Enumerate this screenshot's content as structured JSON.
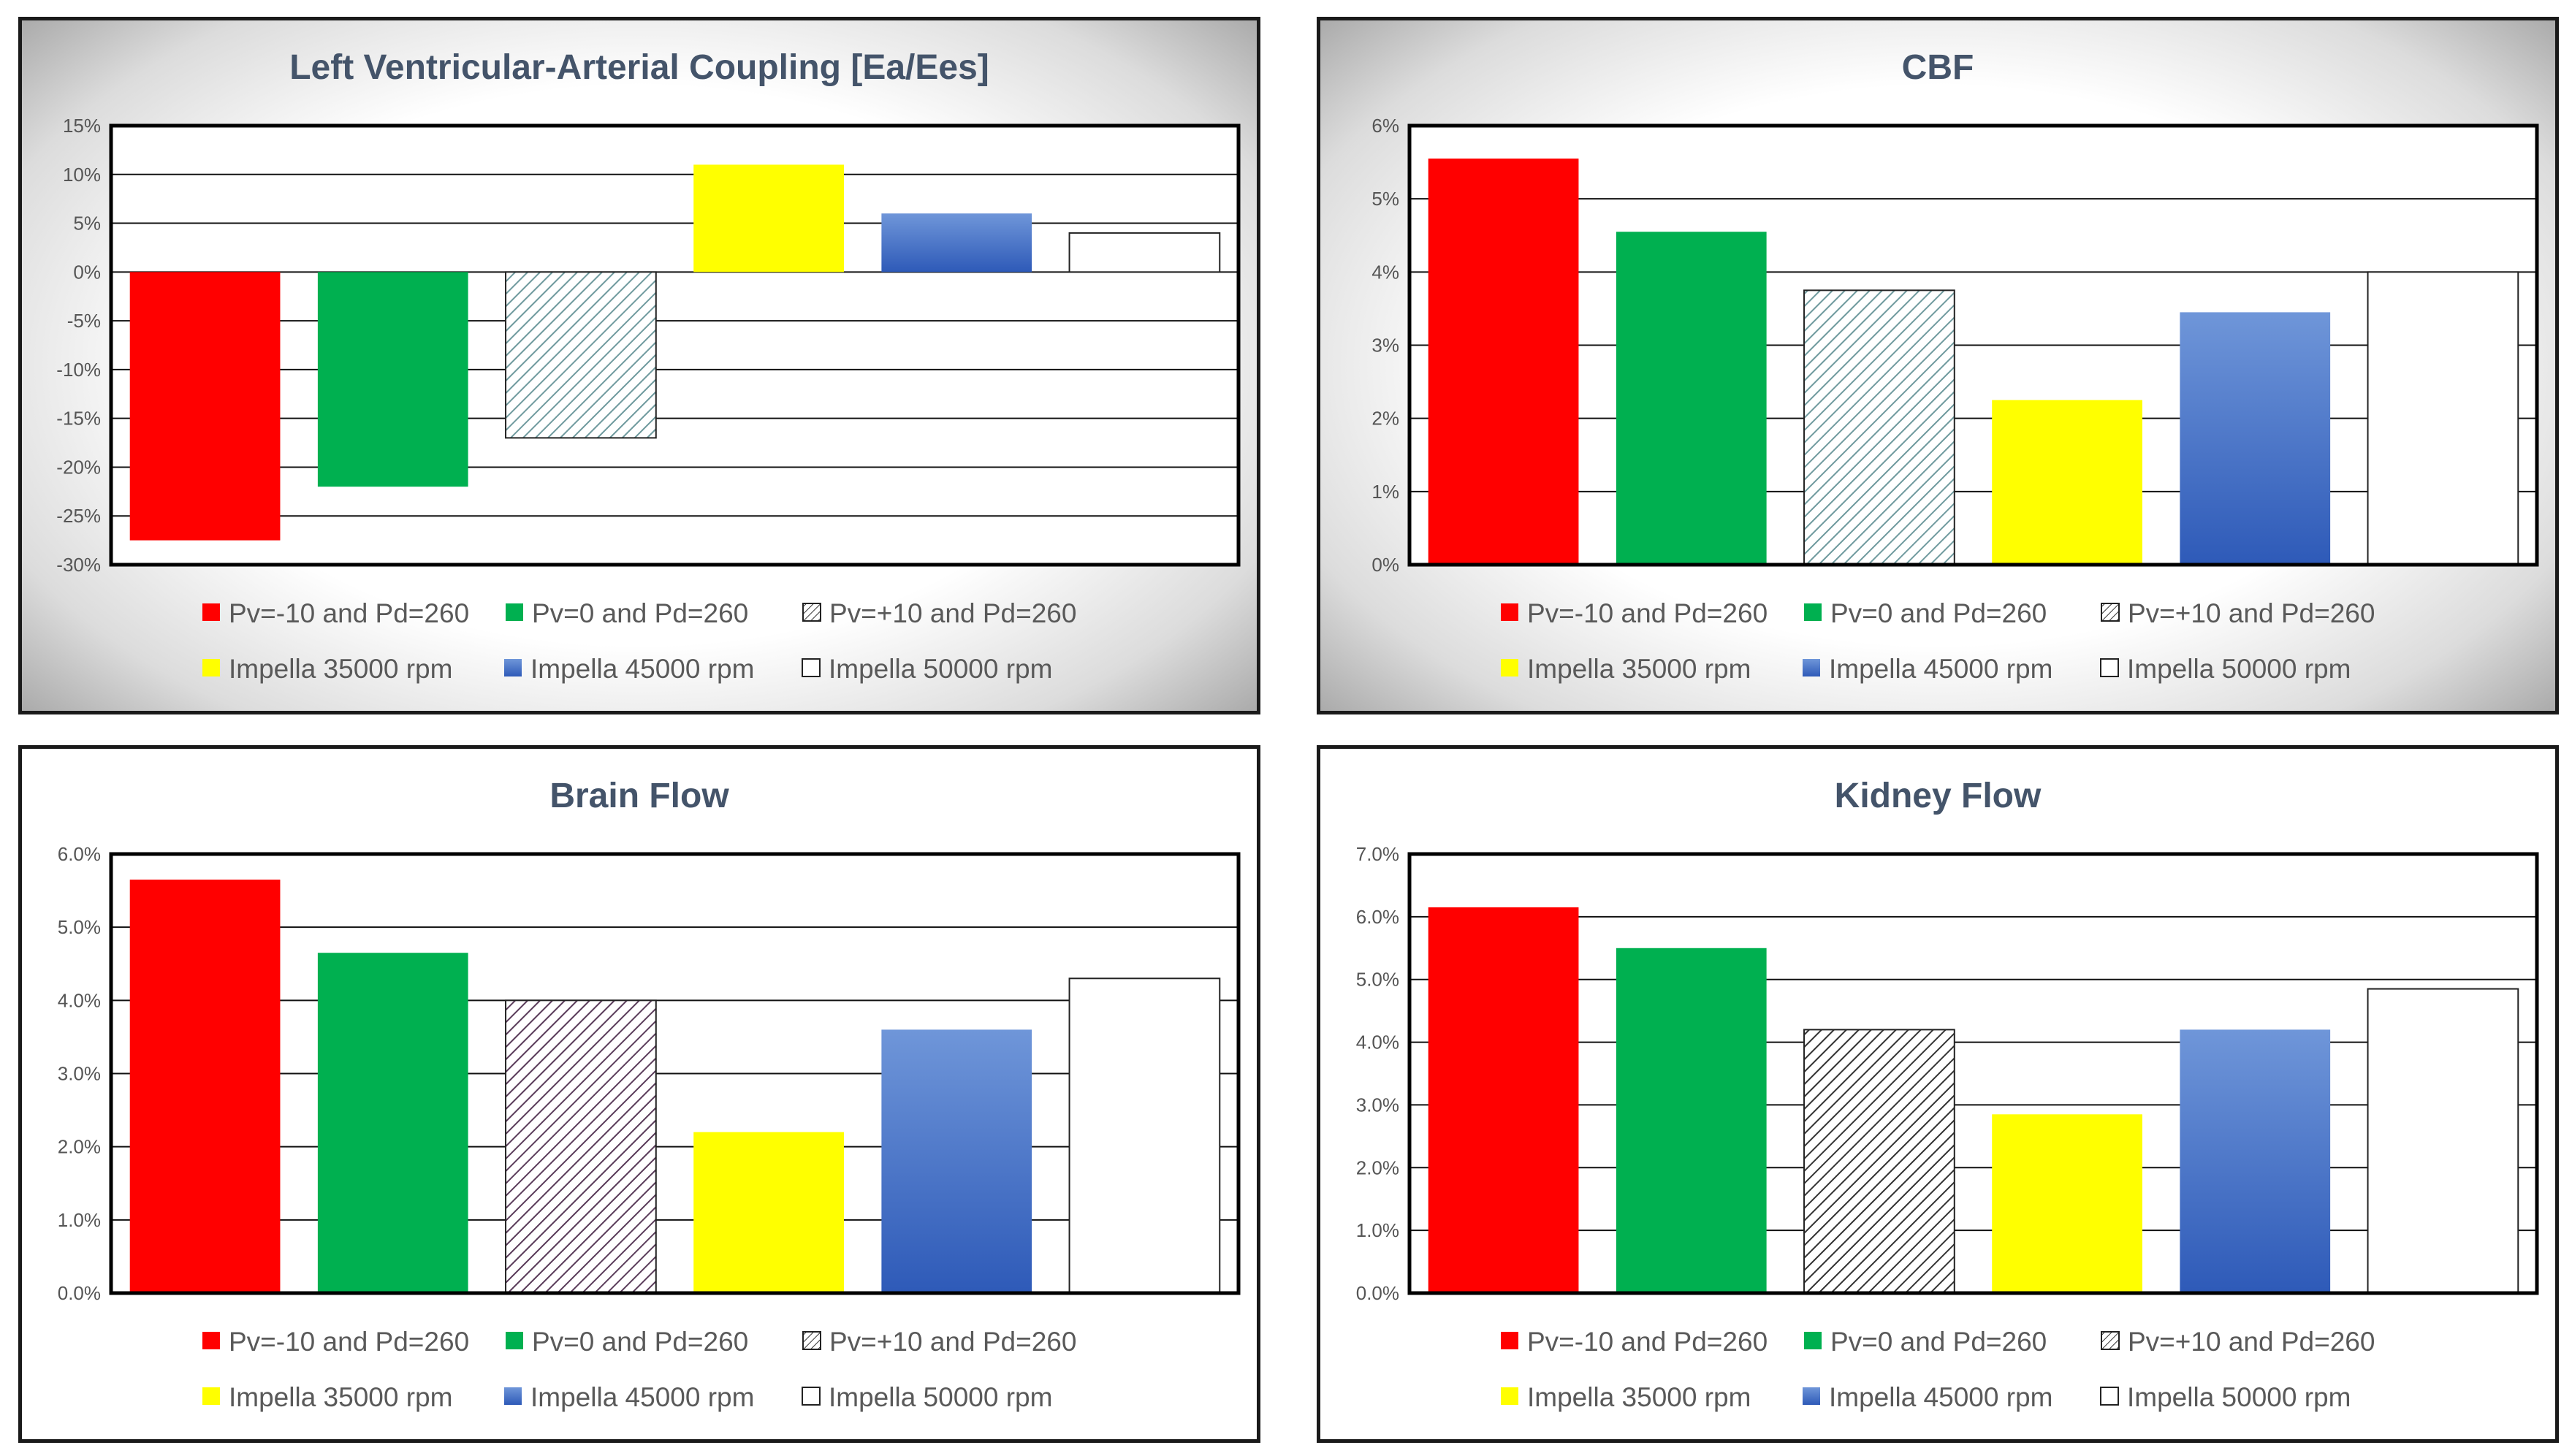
{
  "legend": [
    {
      "label": "Pv=-10 and Pd=260",
      "color": "#ff0000",
      "pattern": "solid"
    },
    {
      "label": "Pv=0 and Pd=260",
      "color": "#00b050",
      "pattern": "solid"
    },
    {
      "label": "Pv=+10 and Pd=260",
      "color": "#ffffff",
      "pattern": "hatch"
    },
    {
      "label": "Impella 35000 rpm",
      "color": "#ffff00",
      "pattern": "solid"
    },
    {
      "label": "Impella 45000 rpm",
      "color": "#4472c4",
      "pattern": "gradient"
    },
    {
      "label": "Impella 50000 rpm",
      "color": "#ffffff",
      "pattern": "solid"
    }
  ],
  "chart_data": [
    {
      "type": "bar",
      "title": "Left Ventricular-Arterial  Coupling  [Ea/Ees]",
      "ylim": [
        -30,
        15
      ],
      "yticks": [
        "15%",
        "10%",
        "5%",
        "0%",
        "-5%",
        "-10%",
        "-15%",
        "-20%",
        "-25%",
        "-30%"
      ],
      "ytick_values": [
        15,
        10,
        5,
        0,
        -5,
        -10,
        -15,
        -20,
        -25,
        -30
      ],
      "series": [
        {
          "name": "Pv=-10 and Pd=260",
          "values": [
            -27.5
          ]
        },
        {
          "name": "Pv=0 and Pd=260",
          "values": [
            -22
          ]
        },
        {
          "name": "Pv=+10 and Pd=260",
          "values": [
            -17
          ]
        },
        {
          "name": "Impella 35000 rpm",
          "values": [
            11
          ]
        },
        {
          "name": "Impella 45000 rpm",
          "values": [
            6
          ]
        },
        {
          "name": "Impella 50000 rpm",
          "values": [
            4
          ]
        }
      ],
      "hatch_color": "#6f9a9e",
      "background": "gradient",
      "grid": true,
      "legend_position": "bottom"
    },
    {
      "type": "bar",
      "title": "CBF",
      "ylim": [
        0,
        6
      ],
      "yticks": [
        "6%",
        "5%",
        "4%",
        "3%",
        "2%",
        "1%",
        "0%"
      ],
      "ytick_values": [
        6,
        5,
        4,
        3,
        2,
        1,
        0
      ],
      "series": [
        {
          "name": "Pv=-10 and Pd=260",
          "values": [
            5.55
          ]
        },
        {
          "name": "Pv=0 and Pd=260",
          "values": [
            4.55
          ]
        },
        {
          "name": "Pv=+10 and Pd=260",
          "values": [
            3.75
          ]
        },
        {
          "name": "Impella 35000 rpm",
          "values": [
            2.25
          ]
        },
        {
          "name": "Impella 45000 rpm",
          "values": [
            3.45
          ]
        },
        {
          "name": "Impella 50000 rpm",
          "values": [
            4.0
          ]
        }
      ],
      "hatch_color": "#6f9a9e",
      "background": "gradient",
      "grid": true,
      "legend_position": "bottom"
    },
    {
      "type": "bar",
      "title": "Brain Flow",
      "ylim": [
        0,
        6
      ],
      "yticks": [
        "6.0%",
        "5.0%",
        "4.0%",
        "3.0%",
        "2.0%",
        "1.0%",
        "0.0%"
      ],
      "ytick_values": [
        6,
        5,
        4,
        3,
        2,
        1,
        0
      ],
      "series": [
        {
          "name": "Pv=-10 and Pd=260",
          "values": [
            5.65
          ]
        },
        {
          "name": "Pv=0 and Pd=260",
          "values": [
            4.65
          ]
        },
        {
          "name": "Pv=+10 and Pd=260",
          "values": [
            4.0
          ]
        },
        {
          "name": "Impella 35000 rpm",
          "values": [
            2.2
          ]
        },
        {
          "name": "Impella 45000 rpm",
          "values": [
            3.6
          ]
        },
        {
          "name": "Impella 50000 rpm",
          "values": [
            4.3
          ]
        }
      ],
      "hatch_color": "#5a3c5a",
      "background": "plain",
      "grid": true,
      "legend_position": "bottom"
    },
    {
      "type": "bar",
      "title": "Kidney Flow",
      "ylim": [
        0,
        7
      ],
      "yticks": [
        "7.0%",
        "6.0%",
        "5.0%",
        "4.0%",
        "3.0%",
        "2.0%",
        "1.0%",
        "0.0%"
      ],
      "ytick_values": [
        7,
        6,
        5,
        4,
        3,
        2,
        1,
        0
      ],
      "series": [
        {
          "name": "Pv=-10 and Pd=260",
          "values": [
            6.15
          ]
        },
        {
          "name": "Pv=0 and Pd=260",
          "values": [
            5.5
          ]
        },
        {
          "name": "Pv=+10 and Pd=260",
          "values": [
            4.2
          ]
        },
        {
          "name": "Impella 35000 rpm",
          "values": [
            2.85
          ]
        },
        {
          "name": "Impella 45000 rpm",
          "values": [
            4.2
          ]
        },
        {
          "name": "Impella 50000 rpm",
          "values": [
            4.85
          ]
        }
      ],
      "hatch_color": "#333333",
      "background": "plain",
      "grid": true,
      "legend_position": "bottom"
    }
  ]
}
